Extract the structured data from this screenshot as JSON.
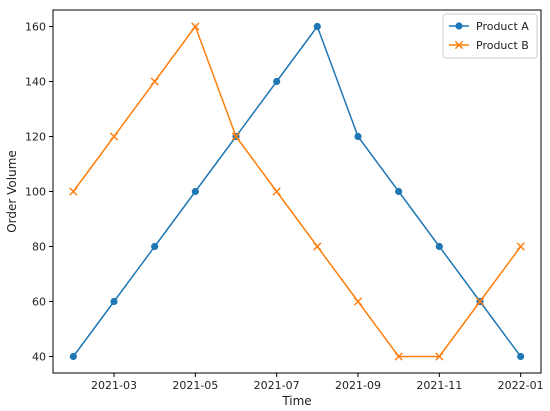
{
  "chart_data": {
    "type": "line",
    "title": "",
    "xlabel": "Time",
    "ylabel": "Order Volume",
    "x": [
      "2021-02",
      "2021-03",
      "2021-04",
      "2021-05",
      "2021-06",
      "2021-07",
      "2021-08",
      "2021-09",
      "2021-10",
      "2021-11",
      "2021-12",
      "2022-01"
    ],
    "x_ticks": [
      "2021-03",
      "2021-05",
      "2021-07",
      "2021-09",
      "2021-11",
      "2022-01"
    ],
    "y_ticks": [
      40,
      60,
      80,
      100,
      120,
      140,
      160
    ],
    "ylim": [
      34,
      166
    ],
    "grid": false,
    "legend_position": "top-right",
    "series": [
      {
        "name": "Product A",
        "color": "#1f77b4",
        "marker": "circle",
        "values": [
          40,
          60,
          80,
          100,
          120,
          140,
          160,
          120,
          100,
          80,
          60,
          40
        ]
      },
      {
        "name": "Product B",
        "color": "#ff7f0e",
        "marker": "x",
        "values": [
          100,
          120,
          140,
          160,
          120,
          100,
          80,
          60,
          40,
          40,
          60,
          80
        ]
      }
    ]
  }
}
